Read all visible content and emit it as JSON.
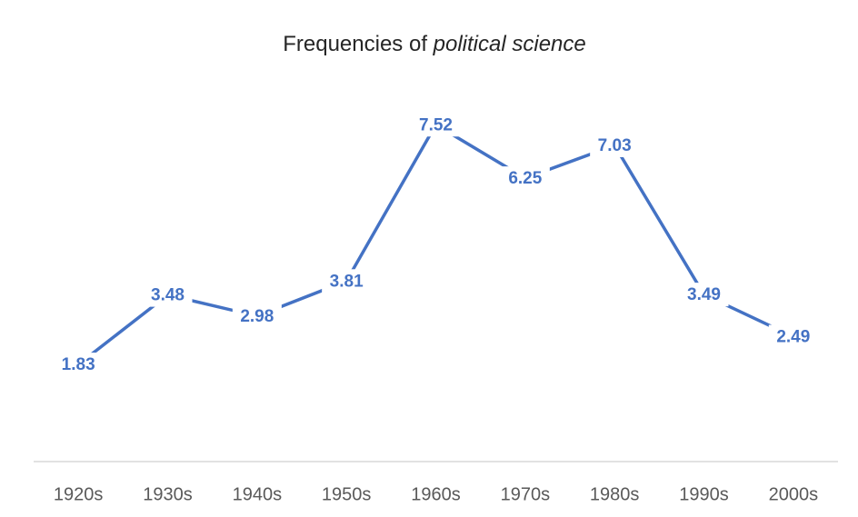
{
  "chart_data": {
    "type": "line",
    "title": "Frequencies of political science",
    "title_italic": "political science",
    "categories": [
      "1920s",
      "1930s",
      "1940s",
      "1950s",
      "1960s",
      "1970s",
      "1980s",
      "1990s",
      "2000s"
    ],
    "series": [
      {
        "name": "political science",
        "color": "#4472c4",
        "values": [
          1.83,
          3.48,
          2.98,
          3.81,
          7.52,
          6.25,
          7.03,
          3.49,
          2.49
        ]
      }
    ],
    "ylim": [
      0,
      8
    ],
    "data_labels": true,
    "legend": false,
    "grid": false
  }
}
